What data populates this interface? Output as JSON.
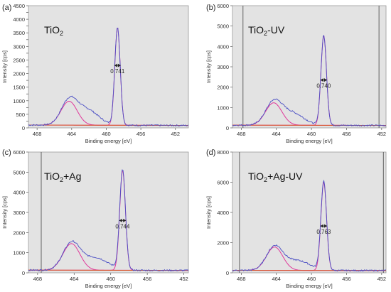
{
  "chart_data": [
    {
      "type": "line",
      "panel_label": "(a)",
      "sample": "TiO",
      "sample_sub": "2",
      "sample_tail": "",
      "xlabel": "Binding energy [eV]",
      "ylabel": "Intensity [cps]",
      "xlim": [
        469,
        450.5
      ],
      "ylim": [
        0,
        4500
      ],
      "x_ticks": [
        468,
        464,
        460,
        456,
        452
      ],
      "y_ticks": [
        0,
        250,
        500,
        750,
        1000,
        1250,
        1500,
        1750,
        2000,
        2250,
        2500,
        2750,
        3000,
        3250,
        3500,
        3750,
        4000,
        4250,
        4500
      ],
      "y_tick_labels": [
        "0",
        "",
        "500",
        "",
        "1000",
        "",
        "1500",
        "",
        "2000",
        "",
        "2500",
        "",
        "3000",
        "",
        "3500",
        "",
        "4000",
        "",
        "4500"
      ],
      "fwhm_label": "0.741",
      "fwhm_y": 2300,
      "peaks": [
        {
          "center": 458.7,
          "height": 3600,
          "fwhm": 0.741
        },
        {
          "center": 464.3,
          "height": 880,
          "fwhm": 2.2
        }
      ],
      "background": 90,
      "measured_extra": [
        {
          "center": 462.2,
          "height": 560,
          "width": 1.3
        }
      ],
      "vlines": []
    },
    {
      "type": "line",
      "panel_label": "(b)",
      "sample": "TiO",
      "sample_sub": "2",
      "sample_tail": "-UV",
      "xlabel": "Binding energy [eV]",
      "ylabel": "Intensity [cps]",
      "xlim": [
        469,
        451.5
      ],
      "ylim": [
        0,
        6000
      ],
      "x_ticks": [
        468,
        464,
        460,
        456,
        452
      ],
      "y_ticks": [
        0,
        1000,
        2000,
        3000,
        4000,
        5000,
        6000
      ],
      "y_tick_labels": [
        "0",
        "1000",
        "2000",
        "3000",
        "4000",
        "5000",
        "6000"
      ],
      "fwhm_label": "0.740",
      "fwhm_y": 2350,
      "peaks": [
        {
          "center": 458.6,
          "height": 4400,
          "fwhm": 0.74
        },
        {
          "center": 464.3,
          "height": 1100,
          "fwhm": 2.2
        }
      ],
      "background": 120,
      "measured_extra": [
        {
          "center": 462.2,
          "height": 600,
          "width": 1.3
        }
      ],
      "vlines": [
        467.8,
        452.3
      ]
    },
    {
      "type": "line",
      "panel_label": "(c)",
      "sample": "TiO",
      "sample_sub": "2",
      "sample_tail": "+Ag",
      "xlabel": "Binding energy [eV]",
      "ylabel": "Intensity [cps]",
      "xlim": [
        469,
        451.5
      ],
      "ylim": [
        0,
        6000
      ],
      "x_ticks": [
        468,
        464,
        460,
        456,
        452
      ],
      "y_ticks": [
        0,
        1000,
        2000,
        3000,
        4000,
        5000,
        6000
      ],
      "y_tick_labels": [
        "0",
        "1000",
        "2000",
        "3000",
        "4000",
        "5000",
        "6000"
      ],
      "fwhm_label": "0.744",
      "fwhm_y": 2600,
      "peaks": [
        {
          "center": 458.7,
          "height": 4950,
          "fwhm": 0.744
        },
        {
          "center": 464.3,
          "height": 1320,
          "fwhm": 2.2
        }
      ],
      "background": 120,
      "measured_extra": [
        {
          "center": 461.7,
          "height": 620,
          "width": 1.4
        }
      ],
      "vlines": [
        467.6
      ]
    },
    {
      "type": "line",
      "panel_label": "(d)",
      "sample": "TiO",
      "sample_sub": "2",
      "sample_tail": "+Ag-UV",
      "xlabel": "Binding energy [eV]",
      "ylabel": "Intensity [cps]",
      "xlim": [
        469,
        451.5
      ],
      "ylim": [
        0,
        8000
      ],
      "x_ticks": [
        468,
        464,
        460,
        456,
        452
      ],
      "y_ticks": [
        0,
        2000,
        4000,
        6000,
        8000
      ],
      "y_tick_labels": [
        "0",
        "2000",
        "4000",
        "6000",
        "8000"
      ],
      "fwhm_label": "0.763",
      "fwhm_y": 3100,
      "peaks": [
        {
          "center": 458.6,
          "height": 5850,
          "fwhm": 0.763
        },
        {
          "center": 464.2,
          "height": 1550,
          "fwhm": 2.2
        }
      ],
      "background": 150,
      "measured_extra": [
        {
          "center": 461.6,
          "height": 650,
          "width": 1.4
        }
      ],
      "vlines": [
        468.2,
        451.8
      ]
    }
  ]
}
